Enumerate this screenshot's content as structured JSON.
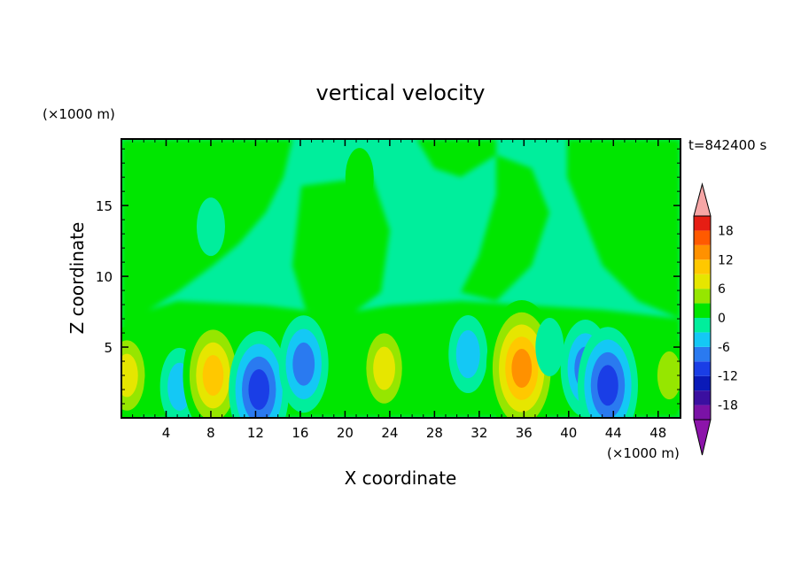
{
  "chart_data": {
    "type": "heatmap",
    "title": "vertical velocity",
    "xlabel": "X coordinate",
    "ylabel": "Z coordinate",
    "x_unit": "(×1000 m)",
    "y_unit": "(×1000 m)",
    "time_label": "t=842400 s",
    "xlim": [
      0,
      50
    ],
    "ylim": [
      0,
      19.7
    ],
    "x_ticks": [
      4,
      8,
      12,
      16,
      20,
      24,
      28,
      32,
      36,
      40,
      44,
      48
    ],
    "y_ticks": [
      5,
      10,
      15
    ],
    "colorbar": {
      "levels": [
        -21,
        -18,
        -15,
        -12,
        -9,
        -6,
        -3,
        0,
        3,
        6,
        9,
        12,
        15,
        18,
        21
      ],
      "labels": [
        18,
        12,
        6,
        0,
        -6,
        -12,
        -18
      ],
      "colors": [
        "#7a12a6",
        "#3b0fa0",
        "#0a1ab8",
        "#1a3ee6",
        "#2a7af0",
        "#14c8f5",
        "#00ee9c",
        "#00e600",
        "#96e600",
        "#e6e600",
        "#ffc800",
        "#ff9100",
        "#ff5a00",
        "#e61e14"
      ],
      "over_color": "#f6a6a6",
      "under_color": "#8c14aa"
    },
    "features": [
      {
        "x": 0.5,
        "z": 3.0,
        "value": 8
      },
      {
        "x": 3.3,
        "z": 2.2,
        "value": 3
      },
      {
        "x": 5.2,
        "z": 2.2,
        "value": -7
      },
      {
        "x": 8.2,
        "z": 3.0,
        "value": 13
      },
      {
        "x": 12.3,
        "z": 2.0,
        "value": -12
      },
      {
        "x": 16.3,
        "z": 3.8,
        "value": -8
      },
      {
        "x": 23.5,
        "z": 3.5,
        "value": 8
      },
      {
        "x": 28.0,
        "z": 5.0,
        "value": 4
      },
      {
        "x": 31.0,
        "z": 4.5,
        "value": -6
      },
      {
        "x": 35.8,
        "z": 3.5,
        "value": 16
      },
      {
        "x": 38.3,
        "z": 5.0,
        "value": -4
      },
      {
        "x": 41.5,
        "z": 3.5,
        "value": -10
      },
      {
        "x": 43.5,
        "z": 2.3,
        "value": -13
      },
      {
        "x": 49.0,
        "z": 3.0,
        "value": 7
      },
      {
        "x": 21.3,
        "z": 17.0,
        "value": 3
      },
      {
        "x": 20.0,
        "z": 11.5,
        "value": 2
      },
      {
        "x": 28.5,
        "z": 13.0,
        "value": -3
      },
      {
        "x": 8.0,
        "z": 13.5,
        "value": -2
      }
    ]
  }
}
